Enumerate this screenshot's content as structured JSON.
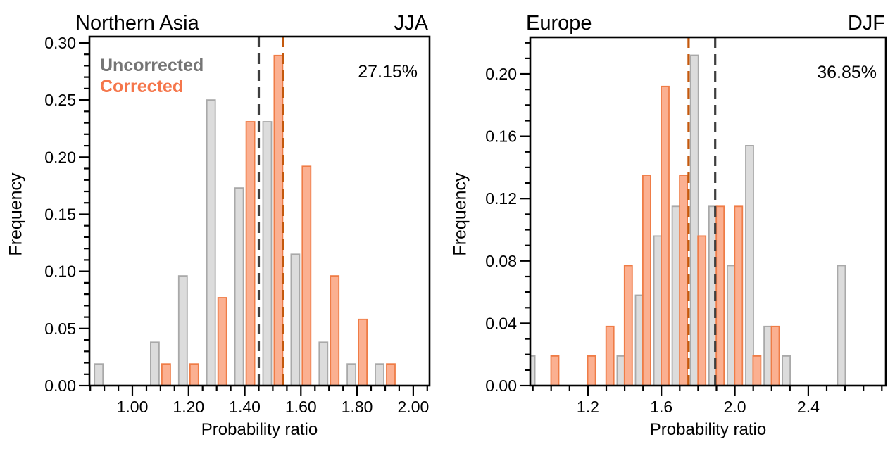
{
  "chart_data": [
    {
      "type": "bar",
      "title": "Northern Asia",
      "season_label": "JJA",
      "annotation": "27.15%",
      "xlabel": "Probability ratio",
      "ylabel": "Frequency",
      "xlim": [
        0.847,
        2.058
      ],
      "ylim": [
        0,
        0.3055
      ],
      "x_major_ticks": [
        1.0,
        1.2,
        1.4,
        1.6,
        1.8,
        2.0
      ],
      "x_tick_labels": [
        "1.00",
        "1.20",
        "1.40",
        "1.60",
        "1.80",
        "2.00"
      ],
      "x_minor_step": 0.05,
      "y_major_ticks": [
        0.0,
        0.05,
        0.1,
        0.15,
        0.2,
        0.25,
        0.3
      ],
      "y_tick_labels": [
        "0.00",
        "0.05",
        "0.10",
        "0.15",
        "0.20",
        "0.25",
        "0.30"
      ],
      "y_minor_step": 0.01,
      "bar_width": 0.03,
      "legend_visible": true,
      "series": [
        {
          "name": "Uncorrected",
          "label_color": "#757575",
          "fill": "#dcdcdc",
          "edge": "#a9a9a9",
          "x": [
            0.88,
            1.08,
            1.18,
            1.28,
            1.38,
            1.48,
            1.58,
            1.68,
            1.78,
            1.88
          ],
          "values": [
            0.019,
            0.038,
            0.096,
            0.25,
            0.173,
            0.231,
            0.115,
            0.038,
            0.019,
            0.019
          ]
        },
        {
          "name": "Corrected",
          "label_color": "#f5764b",
          "fill": "#fbb091",
          "edge": "#ef7c46",
          "x": [
            1.12,
            1.22,
            1.32,
            1.42,
            1.52,
            1.62,
            1.72,
            1.82,
            1.92
          ],
          "values": [
            0.019,
            0.019,
            0.077,
            0.231,
            0.289,
            0.192,
            0.096,
            0.058,
            0.019
          ]
        }
      ],
      "vlines": [
        {
          "x": 1.45,
          "color": "#3e3e3e"
        },
        {
          "x": 1.537,
          "color": "#c4590d"
        }
      ]
    },
    {
      "type": "bar",
      "title": "Europe",
      "season_label": "DJF",
      "annotation": "36.85%",
      "xlabel": "Probability ratio",
      "ylabel": "Frequency",
      "xlim": [
        0.886,
        2.822
      ],
      "ylim": [
        0,
        0.2235
      ],
      "x_major_ticks": [
        1.2,
        1.6,
        2.0,
        2.4
      ],
      "x_tick_labels": [
        "1.2",
        "1.6",
        "2.0",
        "2.4"
      ],
      "x_minor_step": 0.1,
      "y_major_ticks": [
        0.0,
        0.04,
        0.08,
        0.12,
        0.16,
        0.2
      ],
      "y_tick_labels": [
        "0.00",
        "0.04",
        "0.08",
        "0.12",
        "0.16",
        "0.20"
      ],
      "y_minor_step": 0.01,
      "bar_width": 0.042,
      "legend_visible": false,
      "series": [
        {
          "name": "Uncorrected",
          "label_color": "#757575",
          "fill": "#dcdcdc",
          "edge": "#a9a9a9",
          "x": [
            0.89,
            1.38,
            1.48,
            1.58,
            1.68,
            1.78,
            1.88,
            1.98,
            2.08,
            2.18,
            2.28,
            2.58
          ],
          "values": [
            0.019,
            0.019,
            0.058,
            0.096,
            0.115,
            0.212,
            0.115,
            0.077,
            0.154,
            0.038,
            0.019,
            0.077
          ]
        },
        {
          "name": "Corrected",
          "label_color": "#f5764b",
          "fill": "#fbb091",
          "edge": "#ef7c46",
          "x": [
            1.02,
            1.22,
            1.32,
            1.42,
            1.52,
            1.62,
            1.72,
            1.82,
            1.92,
            2.02,
            2.12,
            2.22
          ],
          "values": [
            0.019,
            0.019,
            0.038,
            0.077,
            0.135,
            0.192,
            0.135,
            0.096,
            0.115,
            0.115,
            0.019,
            0.038
          ]
        }
      ],
      "vlines": [
        {
          "x": 1.748,
          "color": "#c4590d"
        },
        {
          "x": 1.893,
          "color": "#3e3e3e"
        }
      ]
    }
  ]
}
